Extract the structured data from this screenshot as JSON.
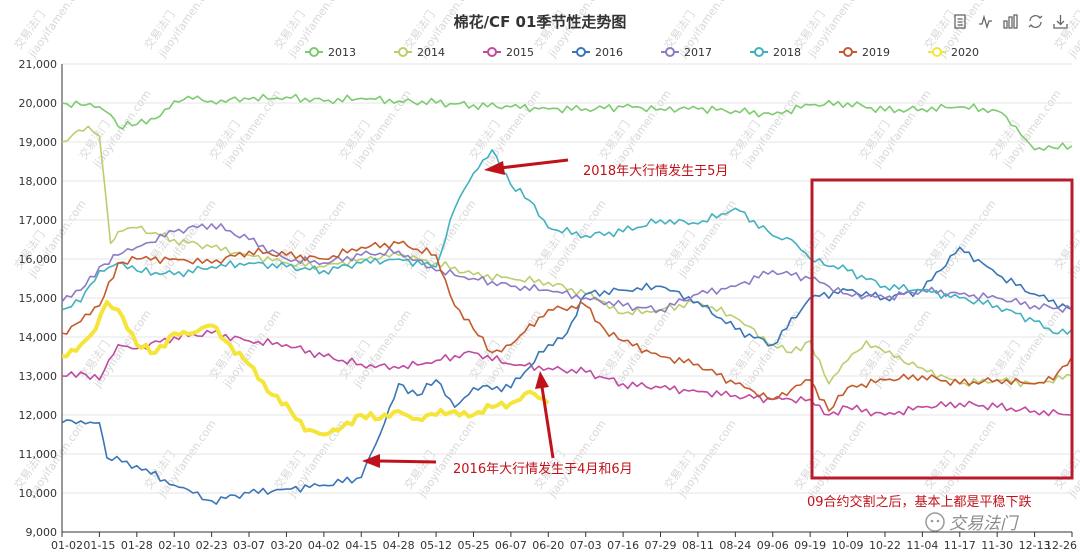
{
  "chart_data": {
    "type": "line",
    "title": "棉花/CF 01季节性走势图",
    "xlabel": "",
    "ylabel": "",
    "ylim": [
      9000,
      21000
    ],
    "yticks": [
      9000,
      10000,
      11000,
      12000,
      13000,
      14000,
      15000,
      16000,
      17000,
      18000,
      19000,
      20000,
      21000
    ],
    "ytick_labels": [
      "9,000",
      "10,000",
      "11,000",
      "12,000",
      "13,000",
      "14,000",
      "15,000",
      "16,000",
      "17,000",
      "18,000",
      "19,000",
      "20,000",
      "21,000"
    ],
    "x_ticks": [
      "01-02",
      "01-15",
      "01-28",
      "02-10",
      "02-23",
      "03-07",
      "03-20",
      "04-02",
      "04-15",
      "04-28",
      "05-12",
      "05-25",
      "06-07",
      "06-20",
      "07-03",
      "07-16",
      "07-29",
      "08-11",
      "08-24",
      "09-06",
      "09-19",
      "10-09",
      "10-22",
      "11-04",
      "11-17",
      "11-30",
      "12-13",
      "12-26"
    ],
    "grid": true,
    "legend_position": "top-center",
    "series": [
      {
        "name": "2013",
        "color": "#7ccb6e",
        "x": [
          0,
          0.5,
          1,
          1.3,
          1.5,
          2,
          2.5,
          3,
          3.5,
          4,
          5,
          6,
          7,
          8,
          9,
          10,
          11,
          12,
          13,
          14,
          15,
          16,
          17,
          18,
          19,
          20,
          21,
          22,
          23,
          24,
          25,
          25.5,
          26,
          26.5,
          27
        ],
        "values": [
          20000,
          19950,
          19900,
          19700,
          19400,
          19450,
          19600,
          20050,
          20100,
          20050,
          20100,
          20150,
          20050,
          20120,
          20050,
          20000,
          19950,
          19900,
          19850,
          19850,
          19900,
          19850,
          19850,
          19800,
          19700,
          19950,
          20000,
          19800,
          19850,
          19900,
          19800,
          19400,
          18800,
          18850,
          18900
        ]
      },
      {
        "name": "2014",
        "color": "#b9cf6f",
        "x": [
          0,
          0.3,
          0.7,
          1,
          1.3,
          1.5,
          2,
          3,
          4,
          5,
          6,
          7,
          8,
          9,
          10,
          11,
          12,
          13,
          14,
          14.5,
          15,
          16,
          17,
          18,
          19,
          19.5,
          20,
          20.5,
          21,
          21.5,
          22,
          23,
          24,
          25,
          26,
          27
        ],
        "values": [
          19000,
          19200,
          19400,
          19150,
          16400,
          16700,
          16800,
          16500,
          16300,
          16100,
          15900,
          15800,
          16000,
          16100,
          15900,
          15600,
          15500,
          15400,
          15100,
          14900,
          14600,
          14700,
          14900,
          14500,
          13800,
          13600,
          13900,
          12800,
          13400,
          13900,
          13600,
          13200,
          12800,
          12900,
          12800,
          13000
        ]
      },
      {
        "name": "2015",
        "color": "#c14aa0",
        "x": [
          0,
          0.5,
          1,
          1.5,
          2,
          3,
          4,
          5,
          6,
          7,
          8,
          9,
          10,
          11,
          12,
          13,
          14,
          15,
          16,
          17,
          18,
          19,
          20,
          20.5,
          21,
          22,
          23,
          24,
          25,
          26,
          27
        ],
        "values": [
          13000,
          13100,
          12900,
          13800,
          13700,
          14000,
          14100,
          13900,
          13800,
          13500,
          13300,
          13200,
          13400,
          13600,
          13300,
          13200,
          13100,
          12800,
          12700,
          12600,
          12500,
          12400,
          12400,
          12000,
          12200,
          12000,
          12200,
          12300,
          12200,
          12100,
          12000
        ]
      },
      {
        "name": "2016",
        "color": "#3a76b5",
        "x": [
          0,
          0.5,
          1,
          1.2,
          1.6,
          2,
          3,
          3.5,
          4,
          5,
          6,
          7,
          8,
          8.5,
          9,
          9.5,
          10,
          10.5,
          11,
          12,
          13,
          13.5,
          14,
          15,
          16,
          17,
          18,
          19,
          20,
          21,
          22,
          23,
          24,
          25,
          26,
          27
        ],
        "values": [
          11800,
          11850,
          11800,
          10900,
          10800,
          10700,
          10200,
          10000,
          9800,
          10000,
          10100,
          10200,
          10400,
          11500,
          12800,
          12500,
          12900,
          12200,
          12700,
          12700,
          13800,
          14100,
          15100,
          15200,
          15300,
          14900,
          14200,
          13800,
          15000,
          15200,
          15000,
          15200,
          16300,
          15600,
          15100,
          14700
        ]
      },
      {
        "name": "2017",
        "color": "#8f7ac5",
        "x": [
          0,
          0.5,
          1,
          1.5,
          2,
          3,
          4,
          5,
          6,
          7,
          8,
          9,
          10,
          11,
          12,
          13,
          14,
          15,
          16,
          17,
          18,
          19,
          20,
          21,
          22,
          23,
          24,
          25,
          26,
          27
        ],
        "values": [
          14900,
          15200,
          15800,
          16100,
          16300,
          16700,
          16900,
          16500,
          16000,
          15900,
          16100,
          16200,
          15700,
          15500,
          15300,
          15200,
          15000,
          14800,
          14700,
          15100,
          15300,
          15700,
          15500,
          15100,
          15000,
          15200,
          15100,
          15000,
          14800,
          14700
        ]
      },
      {
        "name": "2018",
        "color": "#41b1c0",
        "x": [
          0,
          0.5,
          1,
          1.5,
          2,
          3,
          4,
          5,
          6,
          7,
          8,
          9,
          10,
          10.5,
          11,
          11.5,
          12,
          12.5,
          13,
          14,
          15,
          16,
          17,
          18,
          19,
          19.5,
          20,
          21,
          22,
          23,
          24,
          25,
          26,
          26.5,
          27
        ],
        "values": [
          14700,
          14900,
          15700,
          15900,
          15700,
          15600,
          15800,
          15900,
          15800,
          15700,
          15900,
          16000,
          15800,
          17300,
          18200,
          18800,
          17900,
          17500,
          16800,
          16600,
          16700,
          17000,
          16900,
          17300,
          16600,
          16500,
          16000,
          15700,
          15300,
          15200,
          15000,
          14800,
          14400,
          14100,
          14200
        ]
      },
      {
        "name": "2019",
        "color": "#c45a2c",
        "x": [
          0,
          0.5,
          1,
          1.5,
          2,
          3,
          4,
          5,
          6,
          7,
          8,
          9,
          10,
          10.5,
          11,
          11.5,
          12,
          13,
          14,
          14.5,
          15,
          16,
          17,
          18,
          19,
          20,
          20.5,
          21,
          22,
          23,
          24,
          25,
          26,
          26.5,
          27
        ],
        "values": [
          14100,
          14400,
          14800,
          15900,
          16000,
          16000,
          15900,
          16200,
          16100,
          16000,
          16300,
          16400,
          16100,
          14800,
          14200,
          13600,
          13800,
          14700,
          14800,
          14200,
          13900,
          13500,
          13300,
          12800,
          12400,
          12900,
          12100,
          12700,
          12900,
          13000,
          12800,
          12900,
          12800,
          12900,
          13500
        ]
      },
      {
        "name": "2020",
        "color": "#f5e53a",
        "x": [
          0,
          0.5,
          0.9,
          1.2,
          1.5,
          2,
          2.5,
          3,
          3.5,
          4,
          4.5,
          5,
          5.5,
          6,
          6.5,
          7,
          7.5,
          8,
          8.5,
          9,
          9.5,
          10,
          10.5,
          11,
          11.5,
          12,
          12.5,
          13
        ],
        "values": [
          13500,
          13800,
          14200,
          14900,
          14700,
          13800,
          13600,
          14100,
          14100,
          14300,
          13800,
          13300,
          12600,
          12300,
          11600,
          11500,
          11700,
          12000,
          11900,
          12100,
          11900,
          12000,
          12100,
          12000,
          12200,
          12300,
          12600,
          12300
        ]
      }
    ],
    "annotations": [
      {
        "text": "2018年大行情发生于5月"
      },
      {
        "text": "2016年大行情发生于4月和6月"
      },
      {
        "text": "09合约交割之后，基本上都是平稳下跌"
      }
    ],
    "highlight_box": {
      "color": "#b71c2c"
    }
  },
  "watermark": {
    "text": "交易法门",
    "url_text": "jiaoyifamen.com"
  },
  "logo": {
    "text": "交易法门"
  },
  "toolbar": {
    "icons": [
      "data-view-icon",
      "line-chart-icon",
      "bar-chart-icon",
      "restore-icon",
      "save-icon"
    ]
  },
  "colors": {
    "axis": "#333333",
    "grid": "#e5e5e5",
    "annotation": "#c0121a"
  }
}
